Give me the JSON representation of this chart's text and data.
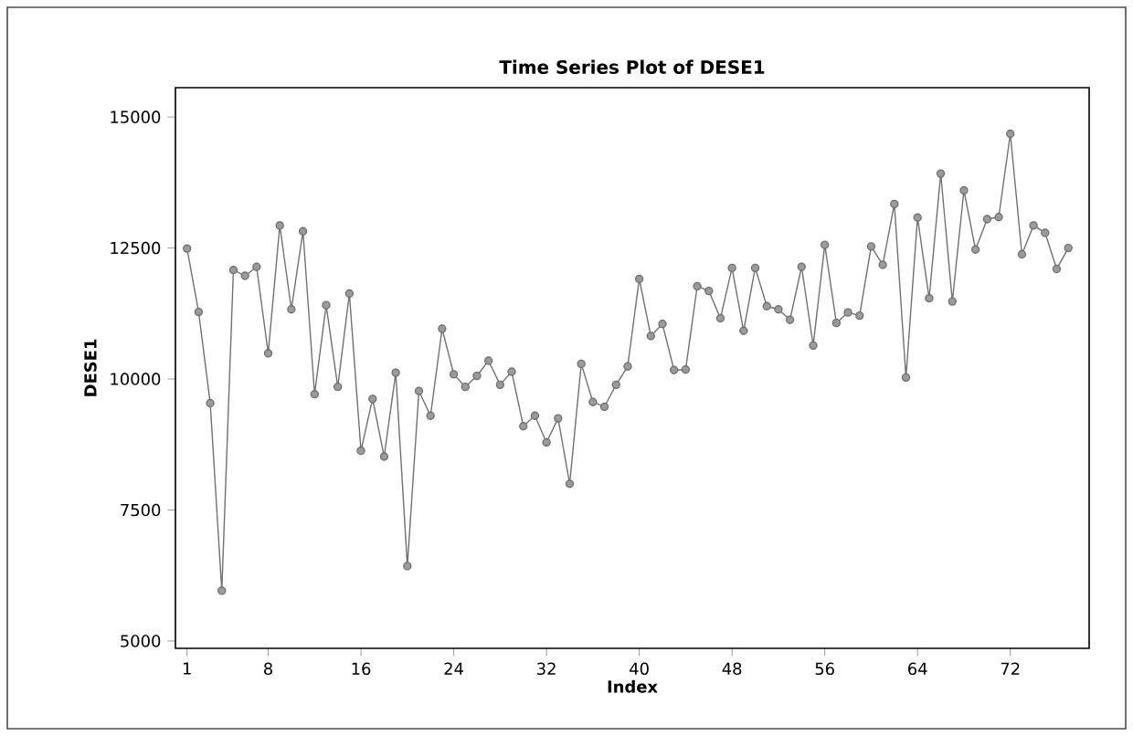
{
  "chart_data": {
    "type": "line",
    "title": "Time Series Plot of DESE1",
    "xlabel": "Index",
    "ylabel": "DESE1",
    "x": [
      1,
      2,
      3,
      4,
      5,
      6,
      7,
      8,
      9,
      10,
      11,
      12,
      13,
      14,
      15,
      16,
      17,
      18,
      19,
      20,
      21,
      22,
      23,
      24,
      25,
      26,
      27,
      28,
      29,
      30,
      31,
      32,
      33,
      34,
      35,
      36,
      37,
      38,
      39,
      40,
      41,
      42,
      43,
      44,
      45,
      46,
      47,
      48,
      49,
      50,
      51,
      52,
      53,
      54,
      55,
      56,
      57,
      58,
      59,
      60,
      61,
      62,
      63,
      64,
      65,
      66,
      67,
      68,
      69,
      70,
      71,
      72,
      73,
      74,
      75,
      76,
      77
    ],
    "series": [
      {
        "color": "#707070",
        "values": [
          12490,
          11280,
          9540,
          5960,
          12080,
          11970,
          12140,
          10490,
          12930,
          11330,
          12820,
          9710,
          11410,
          9850,
          11630,
          8630,
          9620,
          8520,
          10120,
          6430,
          9770,
          9300,
          10960,
          10090,
          9850,
          10060,
          10350,
          9890,
          10140,
          9100,
          9300,
          8790,
          9250,
          8000,
          10290,
          9560,
          9470,
          9890,
          10240,
          11910,
          10820,
          11050,
          10170,
          10180,
          11770,
          11680,
          11160,
          12120,
          10920,
          12120,
          11390,
          11330,
          11130,
          12140,
          10640,
          12560,
          11070,
          11270,
          11210,
          12530,
          12180,
          13340,
          10030,
          13080,
          11540,
          13920,
          11480,
          13600,
          12470,
          13050,
          13090,
          14680,
          12380,
          12930,
          12790,
          12100,
          12500
        ]
      }
    ],
    "xlim": [
      0,
      78.8
    ],
    "ylim": [
      4860,
      15560
    ],
    "xticks": [
      1,
      8,
      16,
      24,
      32,
      40,
      48,
      56,
      64,
      72
    ],
    "yticks": [
      5000,
      7500,
      10000,
      12500,
      15000
    ],
    "marker": "circle",
    "line_style": "solid"
  }
}
